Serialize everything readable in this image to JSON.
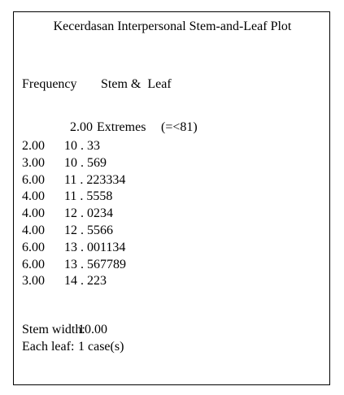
{
  "title": "Kecerdasan Interpersonal Stem-and-Leaf Plot",
  "header": {
    "frequency": "Frequency",
    "stem_leaf": "Stem &  Leaf"
  },
  "extremes": {
    "frequency": "2.00",
    "label": "Extremes",
    "range": "(=<81)"
  },
  "rows": [
    [
      "2.00",
      "10 . 33"
    ],
    [
      "3.00",
      "10 . 569"
    ],
    [
      "6.00",
      "11 . 223334"
    ],
    [
      "4.00",
      "11 . 5558"
    ],
    [
      "4.00",
      "12 . 0234"
    ],
    [
      "4.00",
      "12 . 5566"
    ],
    [
      "6.00",
      "13 . 001134"
    ],
    [
      "6.00",
      "13 . 567789"
    ],
    [
      "3.00",
      "14 . 223"
    ]
  ],
  "footer": [
    [
      "Stem width:",
      "10.00"
    ],
    [
      "Each leaf:",
      "1 case(s)"
    ]
  ]
}
